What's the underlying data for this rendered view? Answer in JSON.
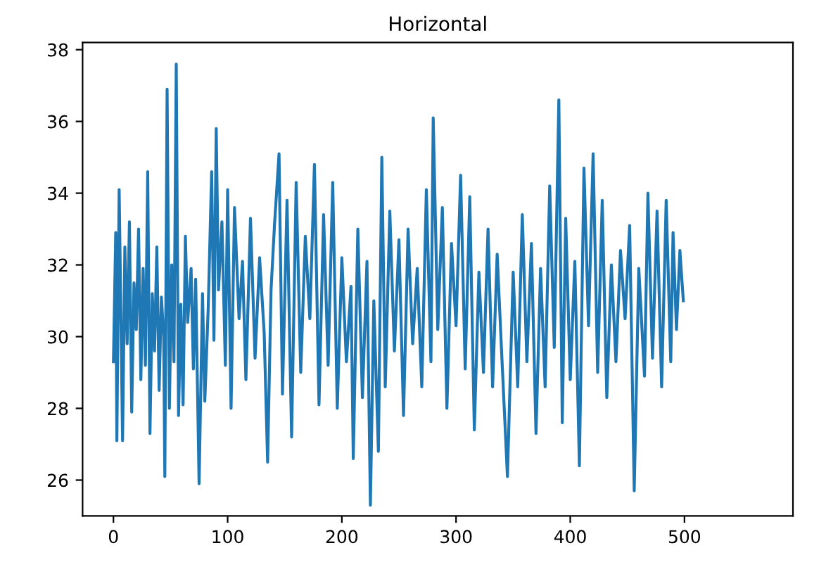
{
  "chart_data": {
    "type": "line",
    "title": "Horizontal",
    "xlim": [
      -27,
      595
    ],
    "ylim": [
      25.0,
      38.2
    ],
    "xticks": [
      0,
      100,
      200,
      300,
      400,
      500
    ],
    "yticks": [
      26,
      28,
      30,
      32,
      34,
      36,
      38
    ],
    "grid": false,
    "legend": false,
    "series": [
      {
        "color": "#1f77b4",
        "x": [
          0,
          2,
          3,
          5,
          7,
          8,
          10,
          12,
          14,
          16,
          18,
          20,
          22,
          24,
          26,
          28,
          30,
          32,
          34,
          36,
          38,
          40,
          42,
          44,
          45,
          47,
          49,
          51,
          53,
          55,
          57,
          59,
          61,
          63,
          65,
          68,
          70,
          72,
          75,
          78,
          80,
          83,
          86,
          88,
          90,
          92,
          95,
          98,
          100,
          103,
          106,
          110,
          113,
          116,
          120,
          124,
          128,
          132,
          135,
          138,
          141,
          145,
          148,
          152,
          156,
          160,
          164,
          168,
          172,
          176,
          180,
          184,
          188,
          192,
          196,
          200,
          204,
          208,
          210,
          214,
          218,
          222,
          225,
          228,
          232,
          235,
          238,
          242,
          246,
          250,
          254,
          258,
          262,
          266,
          270,
          274,
          278,
          280,
          284,
          288,
          292,
          296,
          300,
          304,
          308,
          312,
          316,
          320,
          324,
          328,
          332,
          336,
          340,
          345,
          350,
          354,
          358,
          362,
          366,
          370,
          374,
          378,
          382,
          386,
          390,
          393,
          396,
          400,
          404,
          408,
          412,
          416,
          420,
          424,
          428,
          432,
          436,
          440,
          444,
          448,
          452,
          456,
          460,
          465,
          468,
          472,
          476,
          480,
          484,
          488,
          490,
          493,
          496,
          499
        ],
        "values": [
          29.3,
          32.9,
          27.1,
          34.1,
          29.5,
          27.1,
          32.5,
          29.8,
          33.2,
          27.9,
          31.5,
          30.2,
          33.0,
          28.8,
          31.9,
          29.2,
          34.6,
          27.3,
          31.2,
          29.6,
          32.5,
          28.5,
          31.1,
          30.0,
          26.1,
          36.9,
          28.0,
          32.0,
          29.3,
          37.6,
          27.8,
          30.9,
          28.1,
          32.8,
          30.4,
          31.9,
          29.1,
          31.6,
          25.9,
          31.2,
          28.2,
          30.8,
          34.6,
          29.9,
          35.8,
          31.3,
          33.2,
          29.2,
          34.1,
          28.0,
          33.6,
          30.5,
          32.1,
          28.8,
          33.3,
          29.4,
          32.2,
          30.1,
          26.5,
          31.3,
          33.1,
          35.1,
          28.4,
          33.8,
          27.2,
          34.3,
          29.0,
          32.8,
          30.5,
          34.8,
          28.1,
          33.4,
          29.2,
          34.3,
          28.0,
          32.2,
          29.3,
          31.4,
          26.6,
          33.0,
          28.3,
          32.1,
          25.3,
          31.0,
          26.8,
          35.0,
          28.6,
          33.5,
          29.6,
          32.7,
          27.8,
          33.0,
          29.8,
          31.9,
          28.6,
          34.1,
          29.3,
          36.1,
          30.2,
          33.6,
          28.0,
          32.6,
          30.3,
          34.5,
          29.1,
          33.9,
          27.4,
          31.8,
          29.0,
          33.0,
          28.6,
          32.3,
          29.5,
          26.1,
          31.8,
          28.6,
          33.4,
          29.3,
          32.6,
          27.3,
          31.9,
          28.6,
          34.2,
          29.7,
          36.6,
          27.6,
          33.3,
          28.8,
          32.1,
          26.4,
          34.7,
          30.3,
          35.1,
          29.0,
          33.8,
          28.3,
          32.0,
          29.3,
          32.4,
          30.5,
          33.1,
          25.7,
          31.9,
          28.9,
          34.0,
          29.4,
          33.5,
          28.6,
          33.8,
          29.3,
          32.9,
          30.2,
          32.4,
          31.0
        ]
      }
    ]
  }
}
